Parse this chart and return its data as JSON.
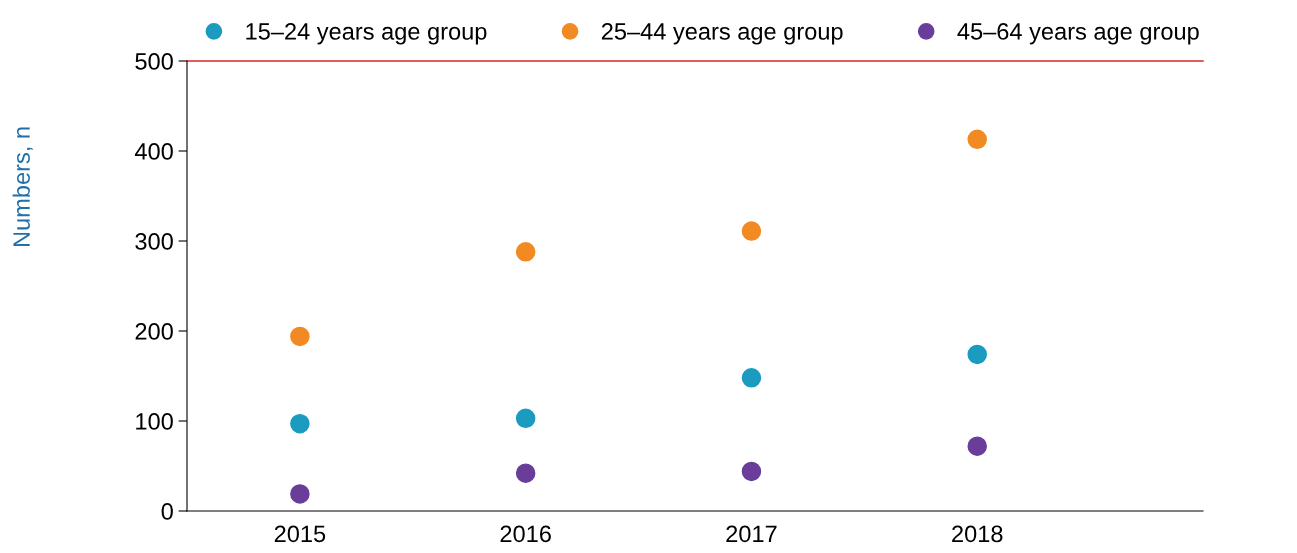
{
  "chart_data": {
    "type": "scatter",
    "ylabel": "Numbers, n",
    "categories": [
      "2015",
      "2016",
      "2017",
      "2018"
    ],
    "series": [
      {
        "name": "15–24 years age group",
        "color": "#1a9bbf",
        "values": [
          97,
          103,
          148,
          174
        ]
      },
      {
        "name": "25–44 years age group",
        "color": "#f28a23",
        "values": [
          194,
          288,
          311,
          413
        ]
      },
      {
        "name": "45–64 years age group",
        "color": "#6a3d9a",
        "values": [
          19,
          42,
          44,
          72
        ]
      }
    ],
    "ylim": [
      0,
      500
    ],
    "yticks": [
      0,
      100,
      200,
      300,
      400,
      500
    ],
    "ref_lines": [
      {
        "axis": "y",
        "value": 500,
        "label": null,
        "color": "#d9252b"
      }
    ],
    "marker": "circle",
    "grid": false,
    "legend": "top"
  }
}
